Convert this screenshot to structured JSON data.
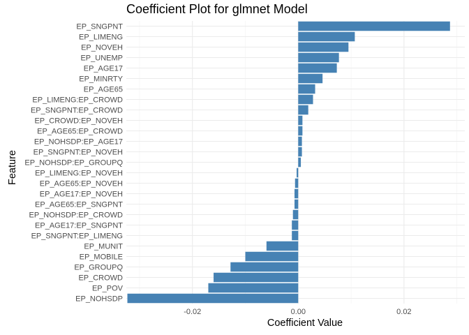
{
  "chart_data": {
    "type": "bar",
    "orientation": "horizontal",
    "title": "Coefficient Plot for glmnet Model",
    "xlabel": "Coefficient Value",
    "ylabel": "Feature",
    "xlim": [
      -0.0325,
      0.0315
    ],
    "xticks": [
      -0.02,
      0.0,
      0.02
    ],
    "xtick_labels": [
      "-0.02",
      "0.00",
      "0.02"
    ],
    "grid": true,
    "bar_color": "#4682B4",
    "categories": [
      "EP_SNGPNT",
      "EP_LIMENG",
      "EP_NOVEH",
      "EP_UNEMP",
      "EP_AGE17",
      "EP_MINRTY",
      "EP_AGE65",
      "EP_LIMENG:EP_CROWD",
      "EP_SNGPNT:EP_CROWD",
      "EP_CROWD:EP_NOVEH",
      "EP_AGE65:EP_CROWD",
      "EP_NOHSDP:EP_AGE17",
      "EP_SNGPNT:EP_NOVEH",
      "EP_NOHSDP:EP_GROUPQ",
      "EP_LIMENG:EP_NOVEH",
      "EP_AGE65:EP_NOVEH",
      "EP_AGE17:EP_NOVEH",
      "EP_AGE65:EP_SNGPNT",
      "EP_NOHSDP:EP_CROWD",
      "EP_AGE17:EP_SNGPNT",
      "EP_SNGPNT:EP_LIMENG",
      "EP_MUNIT",
      "EP_MOBILE",
      "EP_GROUPQ",
      "EP_CROWD",
      "EP_POV",
      "EP_NOHSDP"
    ],
    "values": [
      0.0287,
      0.0107,
      0.0095,
      0.0077,
      0.0073,
      0.0046,
      0.0032,
      0.0028,
      0.0019,
      0.0008,
      0.0008,
      0.0007,
      0.0007,
      0.0005,
      -0.0003,
      -0.0006,
      -0.0007,
      -0.0007,
      -0.001,
      -0.0012,
      -0.0012,
      -0.006,
      -0.01,
      -0.0128,
      -0.016,
      -0.017,
      -0.0323
    ]
  }
}
